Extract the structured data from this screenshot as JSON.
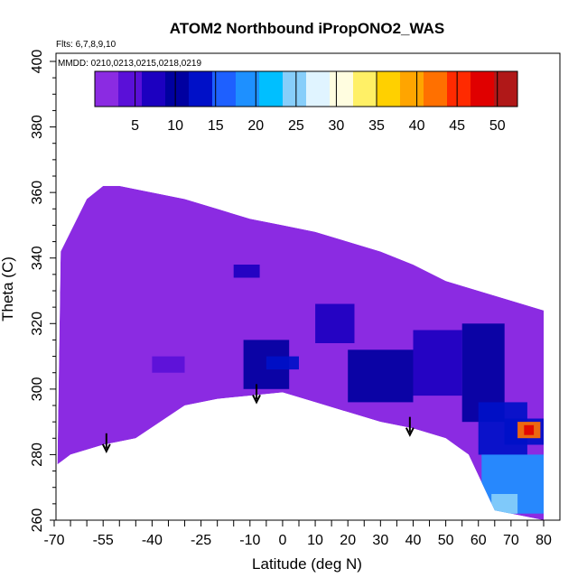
{
  "chart_data": {
    "type": "heatmap",
    "title": "ATOM2 Northbound iPropONO2_WAS",
    "annotations": [
      "Flts: 6,7,8,9,10",
      "MMDD: 0210,0213,0215,0218,0219"
    ],
    "xlabel": "Latitude (deg N)",
    "ylabel": "Theta (C)",
    "xlim": [
      -70,
      80
    ],
    "ylim": [
      260,
      400
    ],
    "x_ticks": [
      -70,
      -55,
      -40,
      -25,
      -10,
      0,
      10,
      20,
      30,
      40,
      50,
      60,
      70,
      80
    ],
    "y_ticks": [
      260,
      280,
      300,
      320,
      340,
      360,
      380,
      400
    ],
    "colorbar": {
      "ticks": [
        5,
        10,
        15,
        20,
        25,
        30,
        35,
        40,
        45,
        50
      ],
      "range": [
        0,
        52.5
      ],
      "colors": [
        "#8b2be2",
        "#5a10d8",
        "#1c00c0",
        "#0000a0",
        "#0010c8",
        "#1e60ff",
        "#1e90ff",
        "#00bfff",
        "#87cefa",
        "#e0f4ff",
        "#fffde0",
        "#fff066",
        "#ffd000",
        "#ffa500",
        "#ff7000",
        "#ff2a00",
        "#e00000",
        "#b01818"
      ]
    },
    "envelope_top": [
      [
        -68,
        342
      ],
      [
        -60,
        358
      ],
      [
        -55,
        362
      ],
      [
        -50,
        362
      ],
      [
        -45,
        361
      ],
      [
        -40,
        360
      ],
      [
        -30,
        358
      ],
      [
        -20,
        355
      ],
      [
        -10,
        352
      ],
      [
        0,
        350
      ],
      [
        10,
        348
      ],
      [
        20,
        345
      ],
      [
        30,
        342
      ],
      [
        40,
        338
      ],
      [
        50,
        333
      ],
      [
        60,
        330
      ],
      [
        70,
        327
      ],
      [
        80,
        324
      ]
    ],
    "envelope_bottom": [
      [
        80,
        260
      ],
      [
        65,
        263
      ],
      [
        57,
        280
      ],
      [
        50,
        285
      ],
      [
        40,
        288
      ],
      [
        30,
        290
      ],
      [
        20,
        293
      ],
      [
        10,
        296
      ],
      [
        0,
        299
      ],
      [
        -10,
        298
      ],
      [
        -20,
        297
      ],
      [
        -30,
        295
      ],
      [
        -45,
        285
      ],
      [
        -55,
        283
      ],
      [
        -65,
        280
      ],
      [
        -69,
        277
      ]
    ],
    "background_value": 1,
    "features": [
      {
        "lat": [
          -40,
          -30
        ],
        "theta": [
          305,
          310
        ],
        "value": 4
      },
      {
        "lat": [
          -15,
          -7
        ],
        "theta": [
          334,
          338
        ],
        "value": 8
      },
      {
        "lat": [
          -12,
          2
        ],
        "theta": [
          300,
          315
        ],
        "value": 10
      },
      {
        "lat": [
          -5,
          5
        ],
        "theta": [
          306,
          310
        ],
        "value": 14
      },
      {
        "lat": [
          10,
          22
        ],
        "theta": [
          314,
          326
        ],
        "value": 7
      },
      {
        "lat": [
          20,
          40
        ],
        "theta": [
          296,
          312
        ],
        "value": 9
      },
      {
        "lat": [
          40,
          55
        ],
        "theta": [
          298,
          318
        ],
        "value": 8
      },
      {
        "lat": [
          55,
          68
        ],
        "theta": [
          290,
          320
        ],
        "value": 9
      },
      {
        "lat": [
          60,
          75
        ],
        "theta": [
          280,
          296
        ],
        "value": 12
      },
      {
        "lat": [
          68,
          80
        ],
        "theta": [
          283,
          291
        ],
        "value": 14
      },
      {
        "lat": [
          72,
          79
        ],
        "theta": [
          285,
          290
        ],
        "value": 42
      },
      {
        "lat": [
          74,
          77
        ],
        "theta": [
          286,
          289
        ],
        "value": 48
      },
      {
        "lat": [
          61,
          80
        ],
        "theta": [
          262,
          280
        ],
        "value": 18
      },
      {
        "lat": [
          64,
          72
        ],
        "theta": [
          262,
          268
        ],
        "value": 26
      }
    ],
    "arrows": [
      {
        "lat": -54,
        "theta": 281
      },
      {
        "lat": -8,
        "theta": 296
      },
      {
        "lat": 39,
        "theta": 286
      }
    ],
    "grid": false,
    "legend": "colorbar at top"
  }
}
